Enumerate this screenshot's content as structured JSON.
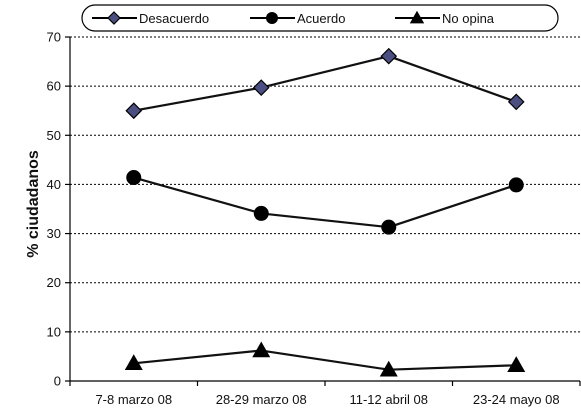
{
  "chart_data": {
    "type": "line",
    "title": "",
    "xlabel": "",
    "ylabel": "% ciudadanos",
    "categories": [
      "7-8 marzo 08",
      "28-29 marzo 08",
      "11-12 abril 08",
      "23-24 mayo 08"
    ],
    "ylim": [
      0,
      70
    ],
    "yticks": [
      "0",
      "10",
      "20",
      "30",
      "40",
      "50",
      "60",
      "70"
    ],
    "grid": "horizontal dashed",
    "legend_position": "top",
    "series": [
      {
        "name": "Desacuerdo",
        "marker": "diamond",
        "marker_color": "#4a4e80",
        "values": [
          55,
          59.7,
          66.1,
          56.8
        ]
      },
      {
        "name": "Acuerdo",
        "marker": "circle",
        "marker_color": "#000000",
        "values": [
          41.4,
          34.1,
          31.3,
          39.9
        ]
      },
      {
        "name": "No opina",
        "marker": "triangle",
        "marker_color": "#000000",
        "values": [
          3.6,
          6.2,
          2.3,
          3.2
        ]
      }
    ]
  }
}
